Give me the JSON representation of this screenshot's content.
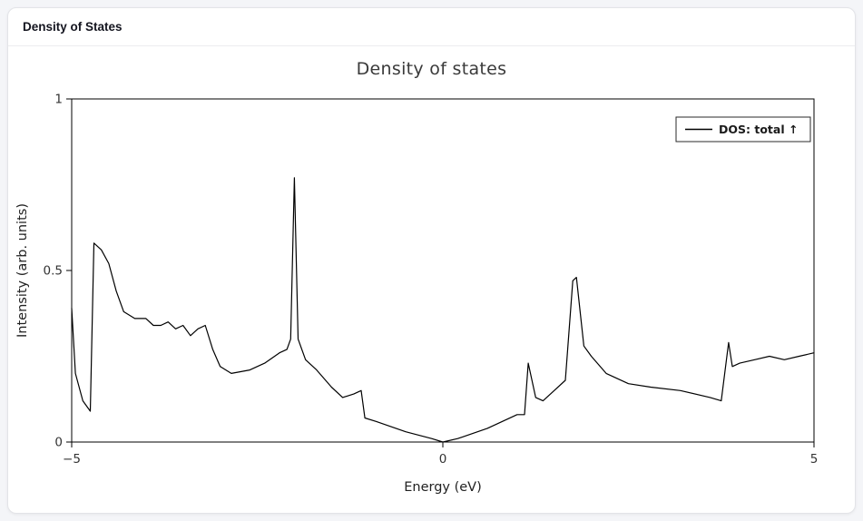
{
  "panel": {
    "title": "Density of States"
  },
  "chart_data": {
    "type": "line",
    "title": "Density of states",
    "xlabel": "Energy (eV)",
    "ylabel": "Intensity (arb. units)",
    "xlim": [
      -5,
      5
    ],
    "ylim": [
      0,
      1
    ],
    "grid": false,
    "frame": true,
    "x_ticks": [
      {
        "v": -5,
        "label": "−5"
      },
      {
        "v": 0,
        "label": "0"
      },
      {
        "v": 5,
        "label": "5"
      }
    ],
    "y_ticks": [
      {
        "v": 0,
        "label": "0"
      },
      {
        "v": 0.5,
        "label": "0.5"
      },
      {
        "v": 1,
        "label": "1"
      }
    ],
    "legend": {
      "position": "top-right",
      "entries": [
        {
          "label": "DOS: total ↑",
          "color": "#000000"
        }
      ]
    },
    "series": [
      {
        "name": "DOS: total ↑",
        "color": "#000000",
        "x": [
          -5.0,
          -4.95,
          -4.85,
          -4.75,
          -4.7,
          -4.6,
          -4.5,
          -4.4,
          -4.3,
          -4.15,
          -4.0,
          -3.9,
          -3.8,
          -3.7,
          -3.6,
          -3.5,
          -3.4,
          -3.3,
          -3.2,
          -3.1,
          -3.0,
          -2.85,
          -2.6,
          -2.4,
          -2.2,
          -2.1,
          -2.05,
          -2.0,
          -1.95,
          -1.85,
          -1.7,
          -1.5,
          -1.35,
          -1.2,
          -1.1,
          -1.05,
          -0.9,
          -0.5,
          -0.15,
          0.0,
          0.2,
          0.6,
          1.0,
          1.1,
          1.15,
          1.25,
          1.35,
          1.5,
          1.65,
          1.75,
          1.8,
          1.9,
          2.0,
          2.2,
          2.5,
          2.8,
          3.2,
          3.6,
          3.75,
          3.85,
          3.9,
          4.0,
          4.2,
          4.4,
          4.6,
          4.8,
          5.0
        ],
        "y": [
          0.39,
          0.2,
          0.12,
          0.09,
          0.58,
          0.56,
          0.52,
          0.44,
          0.38,
          0.36,
          0.36,
          0.34,
          0.34,
          0.35,
          0.33,
          0.34,
          0.31,
          0.33,
          0.34,
          0.27,
          0.22,
          0.2,
          0.21,
          0.23,
          0.26,
          0.27,
          0.3,
          0.77,
          0.3,
          0.24,
          0.21,
          0.16,
          0.13,
          0.14,
          0.15,
          0.07,
          0.06,
          0.03,
          0.01,
          0.0,
          0.01,
          0.04,
          0.08,
          0.08,
          0.23,
          0.13,
          0.12,
          0.15,
          0.18,
          0.47,
          0.48,
          0.28,
          0.25,
          0.2,
          0.17,
          0.16,
          0.15,
          0.13,
          0.12,
          0.29,
          0.22,
          0.23,
          0.24,
          0.25,
          0.24,
          0.25,
          0.26
        ]
      }
    ],
    "colors": {
      "line": "#000000",
      "frame": "#000000",
      "tick_text": "#333333",
      "axis_label_text": "#222222"
    }
  }
}
